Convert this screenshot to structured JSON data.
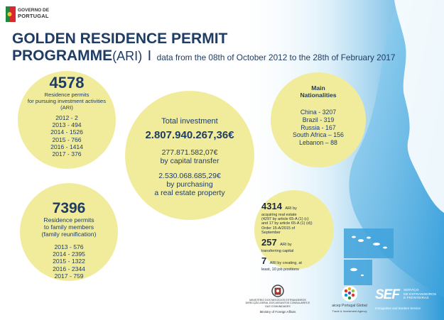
{
  "header": {
    "gov_logo_line1": "GOVERNO DE",
    "gov_logo_line2": "PORTUGAL",
    "title_line1": "GOLDEN RESIDENCE PERMIT",
    "title_line2_bold": "PROGRAMME",
    "title_line2_paren": "(ARI)",
    "title_separator": "I",
    "subtitle": "data from the 08th of October 2012 to the 28th of February 2017"
  },
  "investment_permits": {
    "count": "4578",
    "desc": [
      "Residence permits",
      "for pursuing investment activities",
      "(ARI)"
    ],
    "years": [
      "2012 - 2",
      "2013 - 494",
      "2014 - 1526",
      "2015 - 766",
      "2016 - 1414",
      "2017 - 376"
    ]
  },
  "family_permits": {
    "count": "7396",
    "desc": [
      "Residence permits",
      "to family members",
      "(family reunification)"
    ],
    "years": [
      "2013 - 576",
      "2014 - 2395",
      "2015 - 1322",
      "2016 - 2344",
      "2017 - 759"
    ]
  },
  "total_investment": {
    "label": "Total investment",
    "amount": "2.807.940.267,36€",
    "capital_amount": "277.871.582,07€",
    "capital_label": "by capital transfer",
    "property_amount": "2.530.068.685,29€",
    "property_label_1": "by purchasing",
    "property_label_2": "a real estate property"
  },
  "nationalities": {
    "title_1": "Main",
    "title_2": "Nationalities",
    "items": [
      "China - 3207",
      "Brazil - 319",
      "Russia - 167",
      "South Africa – 156",
      "Lebanon – 88"
    ]
  },
  "breakdown": {
    "real_estate_count": "4314",
    "real_estate_text": [
      "ARI by",
      "acquiring real estate",
      "(4297 by article 65-A (1) (c)",
      "and 17 by article 65-A (1) (d))",
      "Order 15-A/2015 of",
      "September"
    ],
    "capital_count": "257",
    "capital_text": [
      "ARI by",
      "transferring capital"
    ],
    "jobs_count": "7",
    "jobs_text": [
      "ARI by creating, at",
      "least, 10 job positions"
    ]
  },
  "footer": {
    "mne_lines": [
      "MINISTÉRIO DOS NEGÓCIOS ESTRANGEIROS",
      "DIRECÇÃO-GERAL DOS ASSUNTOS CONSULARES E",
      "DAS COMUNIDADES"
    ],
    "mne_caption": "Ministry of Foreign Affairs",
    "aicep_name": "aicep Portugal Global",
    "aicep_caption": "Trade & Investment Agency",
    "sef_name": "SEF",
    "sef_side": [
      "SERVIÇO",
      "DE ESTRANGEIROS",
      "E FRONTEIRAS"
    ],
    "sef_caption": "Immigration and Borders Service"
  },
  "colors": {
    "navy": "#1f3c64",
    "circle_fill": "#f1ec9c",
    "sea_blue": "#3aa7dd",
    "flag_green": "#1f8a3b",
    "flag_red": "#d7282f"
  }
}
